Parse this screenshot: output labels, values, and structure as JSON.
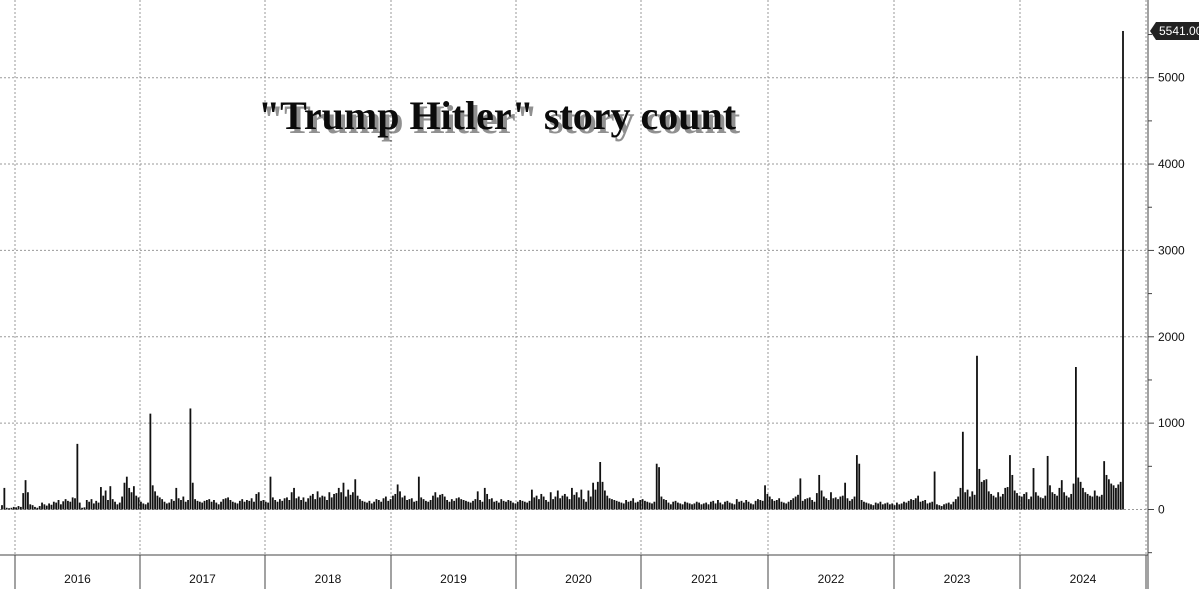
{
  "chart_data": {
    "type": "bar",
    "title": "\"Trump Hitler\" story count",
    "xlabel": "",
    "ylabel": "",
    "x_tick_labels": [
      "2016",
      "2017",
      "2018",
      "2019",
      "2020",
      "2021",
      "2022",
      "2023",
      "2024"
    ],
    "y_tick_labels": [
      "0",
      "1000",
      "2000",
      "3000",
      "4000",
      "5000"
    ],
    "ylim": [
      -500,
      5800
    ],
    "grid": true,
    "legend": "none",
    "last_value_label": "5541.00",
    "colors": {
      "bar": "#111111",
      "grid": "#9a9a9a",
      "axis": "#444444",
      "label_box": "#222222",
      "label_text": "#ffffff"
    },
    "series": [
      {
        "values": [
          50,
          250,
          20,
          15,
          20,
          30,
          25,
          40,
          30,
          190,
          340,
          200,
          60,
          50,
          30,
          20,
          40,
          80,
          60,
          45,
          70,
          55,
          90,
          80,
          110,
          60,
          95,
          120,
          100,
          90,
          140,
          130,
          760,
          80,
          20,
          25,
          110,
          90,
          120,
          70,
          100,
          80,
          260,
          160,
          220,
          110,
          270,
          120,
          90,
          60,
          80,
          150,
          310,
          380,
          250,
          200,
          270,
          160,
          140,
          90,
          70,
          60,
          80,
          1110,
          280,
          210,
          160,
          140,
          120,
          90,
          70,
          80,
          120,
          100,
          250,
          130,
          110,
          150,
          90,
          110,
          1170,
          310,
          120,
          100,
          90,
          80,
          100,
          110,
          120,
          90,
          110,
          80,
          60,
          90,
          120,
          130,
          140,
          110,
          90,
          80,
          70,
          100,
          120,
          90,
          110,
          100,
          130,
          90,
          180,
          200,
          100,
          110,
          90,
          80,
          380,
          140,
          110,
          90,
          120,
          100,
          130,
          140,
          110,
          200,
          250,
          130,
          150,
          110,
          140,
          90,
          130,
          160,
          180,
          120,
          210,
          140,
          160,
          150,
          110,
          200,
          140,
          180,
          190,
          250,
          200,
          310,
          150,
          230,
          170,
          200,
          350,
          160,
          120,
          100,
          90,
          80,
          100,
          70,
          90,
          120,
          110,
          90,
          130,
          150,
          100,
          120,
          160,
          180,
          290,
          210,
          140,
          160,
          110,
          120,
          130,
          90,
          100,
          380,
          140,
          120,
          100,
          90,
          110,
          160,
          200,
          140,
          170,
          180,
          150,
          110,
          90,
          120,
          100,
          130,
          140,
          120,
          110,
          100,
          90,
          80,
          100,
          120,
          210,
          110,
          90,
          250,
          180,
          120,
          130,
          90,
          100,
          80,
          120,
          100,
          90,
          110,
          100,
          80,
          70,
          90,
          110,
          100,
          90,
          80,
          100,
          230,
          140,
          160,
          120,
          180,
          150,
          110,
          90,
          200,
          120,
          150,
          220,
          130,
          160,
          180,
          150,
          120,
          250,
          170,
          200,
          140,
          230,
          120,
          90,
          220,
          150,
          310,
          230,
          320,
          550,
          320,
          220,
          160,
          130,
          120,
          110,
          100,
          90,
          80,
          70,
          110,
          90,
          100,
          130,
          80,
          90,
          110,
          120,
          100,
          90,
          80,
          70,
          90,
          530,
          490,
          150,
          120,
          110,
          80,
          60,
          90,
          100,
          80,
          70,
          60,
          90,
          80,
          70,
          60,
          70,
          90,
          80,
          60,
          70,
          80,
          60,
          90,
          100,
          70,
          110,
          80,
          60,
          90,
          100,
          80,
          70,
          60,
          120,
          90,
          100,
          80,
          110,
          90,
          70,
          60,
          100,
          120,
          110,
          100,
          280,
          180,
          150,
          120,
          100,
          110,
          130,
          90,
          80,
          70,
          90,
          110,
          130,
          150,
          170,
          360,
          100,
          120,
          130,
          140,
          110,
          90,
          190,
          400,
          220,
          150,
          130,
          110,
          200,
          130,
          140,
          120,
          150,
          160,
          310,
          130,
          100,
          120,
          150,
          630,
          530,
          110,
          90,
          80,
          70,
          60,
          50,
          80,
          70,
          90,
          60,
          70,
          80,
          60,
          70,
          50,
          80,
          60,
          70,
          90,
          80,
          100,
          120,
          110,
          130,
          160,
          90,
          100,
          110,
          70,
          80,
          90,
          440,
          60,
          50,
          40,
          60,
          70,
          80,
          60,
          90,
          120,
          150,
          250,
          900,
          200,
          230,
          150,
          210,
          170,
          1780,
          470,
          320,
          340,
          350,
          210,
          180,
          160,
          140,
          200,
          150,
          180,
          250,
          260,
          630,
          400,
          220,
          190,
          160,
          150,
          180,
          200,
          120,
          150,
          480,
          200,
          160,
          140,
          130,
          160,
          620,
          280,
          200,
          180,
          160,
          250,
          340,
          200,
          160,
          140,
          180,
          300,
          1650,
          370,
          320,
          250,
          200,
          180,
          160,
          150,
          220,
          160,
          150,
          170,
          560,
          400,
          350,
          300,
          280,
          250,
          290,
          320,
          5541
        ]
      }
    ]
  }
}
